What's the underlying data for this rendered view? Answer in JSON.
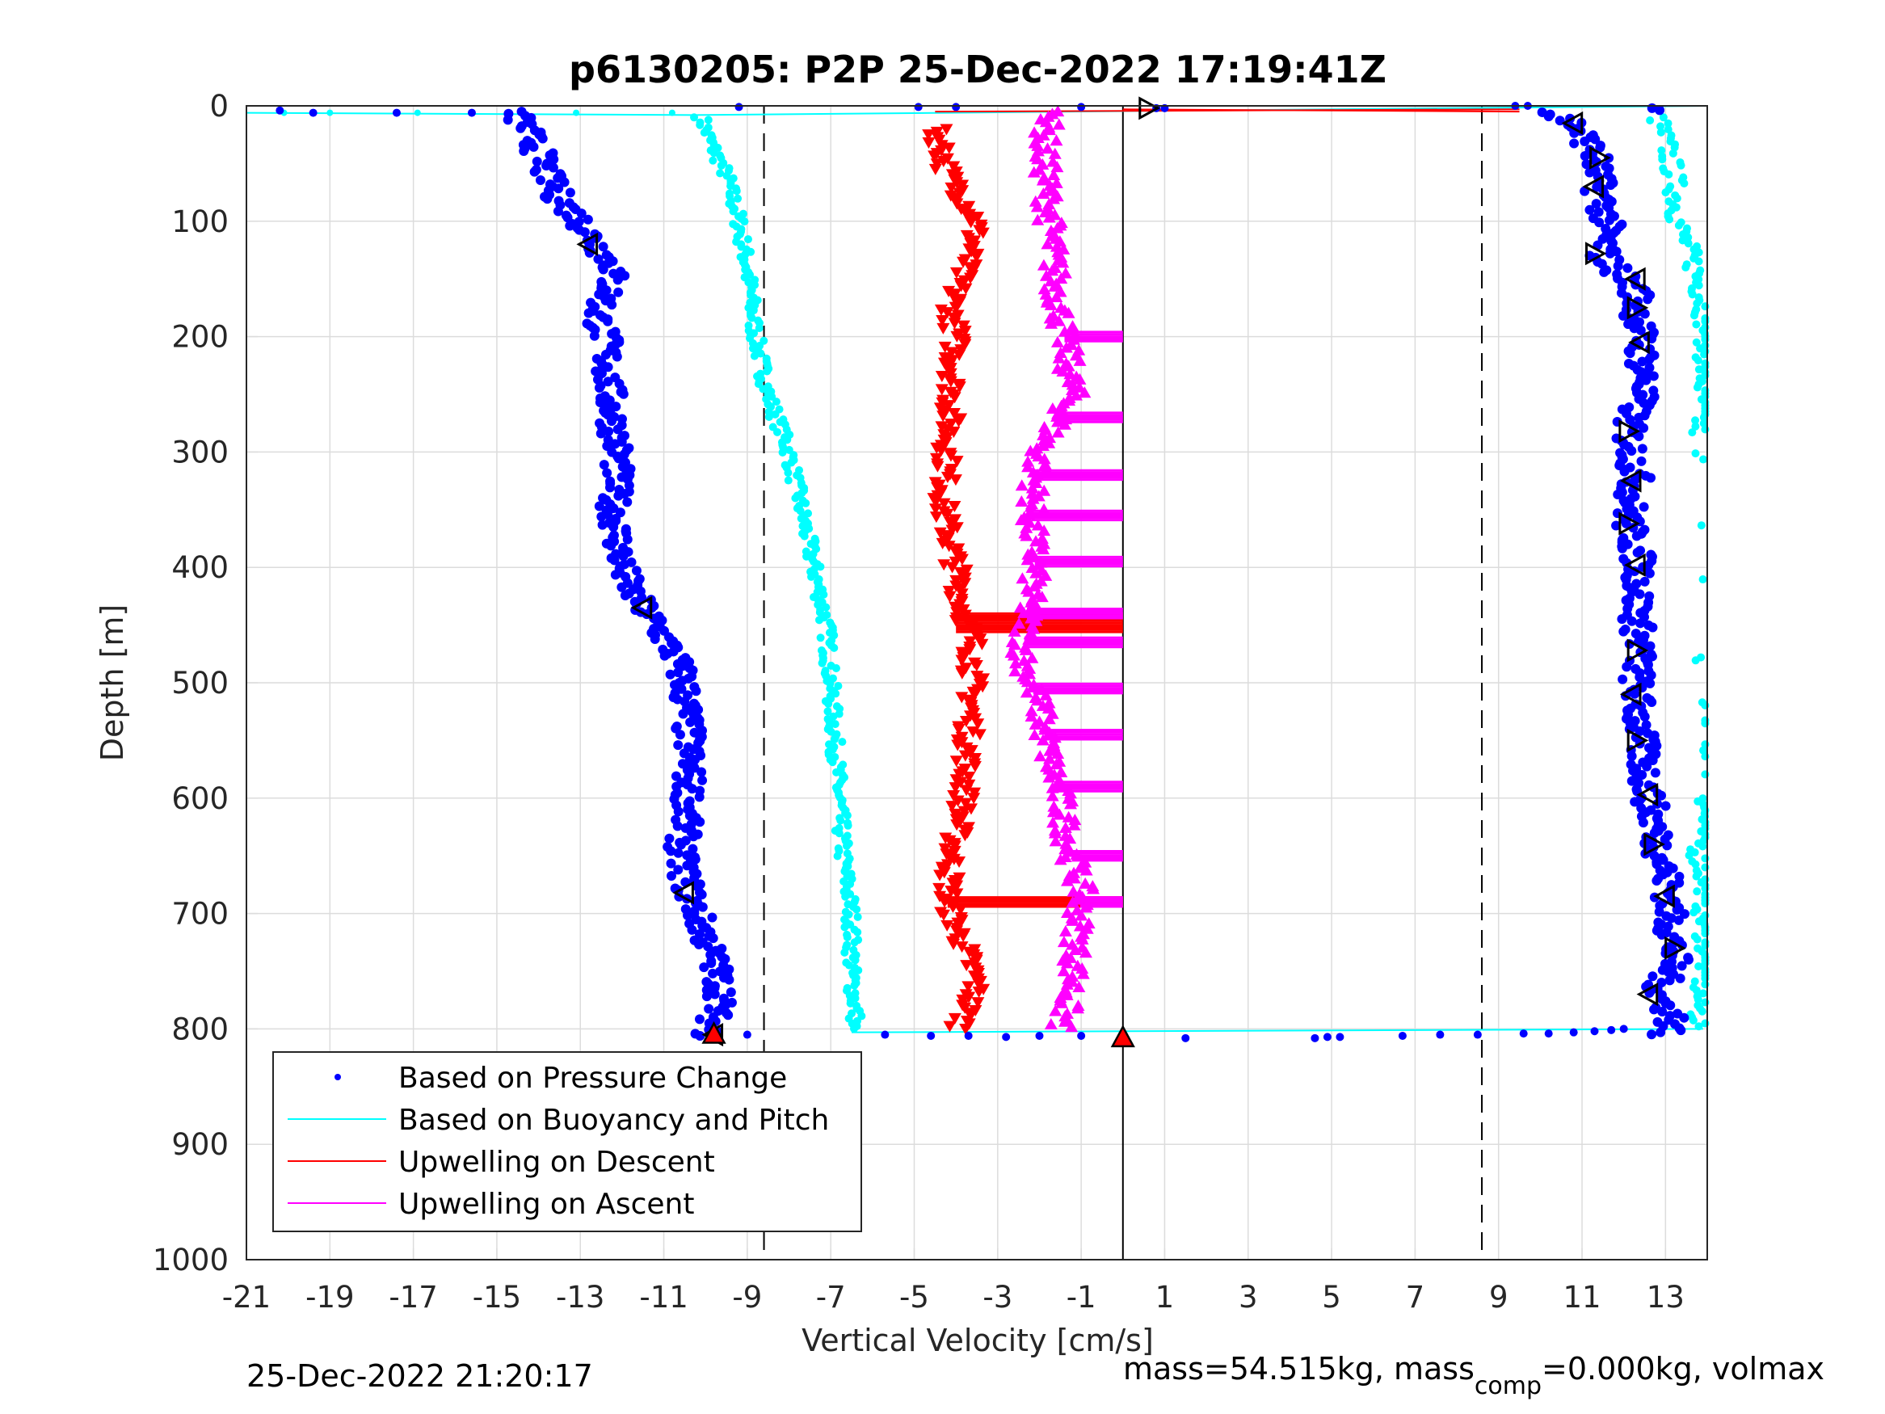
{
  "chart_data": {
    "type": "scatter",
    "title": "p6130205: P2P 25-Dec-2022 17:19:41Z",
    "xlabel": "Vertical Velocity [cm/s]",
    "ylabel": "Depth [m]",
    "xlim": [
      -21,
      14
    ],
    "ylim": [
      0,
      1000
    ],
    "y_reversed": true,
    "grid": true,
    "legend_position": "bottom-left",
    "x_ticks": [
      "-21",
      "-19",
      "-17",
      "-15",
      "-13",
      "-11",
      "-9",
      "-7",
      "-5",
      "-3",
      "-1",
      "1",
      "3",
      "5",
      "7",
      "9",
      "11",
      "13"
    ],
    "y_ticks": [
      "0",
      "100",
      "200",
      "300",
      "400",
      "500",
      "600",
      "700",
      "800",
      "900",
      "1000"
    ],
    "reference_lines": {
      "solid_x": [
        0
      ],
      "dashed_x": [
        -8.6,
        8.6
      ]
    },
    "series": [
      {
        "name": "Based on Pressure Change",
        "color": "#0000ff",
        "marker": "dot",
        "descent": {
          "depth": [
            5,
            20,
            40,
            60,
            80,
            100,
            120,
            140,
            160,
            180,
            200,
            250,
            300,
            350,
            400,
            420,
            440,
            460,
            480,
            500,
            550,
            600,
            650,
            680,
            700,
            740,
            770,
            790,
            800,
            805
          ],
          "velocity": [
            -14.6,
            -14.3,
            -14,
            -13.8,
            -13.5,
            -13,
            -12.6,
            -12.2,
            -12.3,
            -12.6,
            -12.4,
            -12.3,
            -12.1,
            -12.2,
            -12.0,
            -11.8,
            -11.4,
            -11.0,
            -10.7,
            -10.5,
            -10.4,
            -10.4,
            -10.6,
            -10.4,
            -10.2,
            -9.8,
            -9.6,
            -9.8,
            -9.9,
            -9.9
          ]
        },
        "ascent": {
          "depth": [
            805,
            800,
            790,
            770,
            740,
            700,
            680,
            650,
            600,
            550,
            500,
            470,
            440,
            400,
            360,
            320,
            280,
            240,
            200,
            160,
            130,
            100,
            70,
            40,
            15,
            5
          ],
          "velocity": [
            13.0,
            13.1,
            13.2,
            12.8,
            13.2,
            13.1,
            13.1,
            12.9,
            12.6,
            12.4,
            12.3,
            12.4,
            12.3,
            12.4,
            12.1,
            12.3,
            12.1,
            12.5,
            12.4,
            12.3,
            11.5,
            11.6,
            11.4,
            11.3,
            10.8,
            10.1
          ]
        }
      },
      {
        "name": "Based on Buoyancy and Pitch",
        "color": "#00ffff",
        "marker": "line+dot",
        "descent": {
          "depth": [
            8,
            10,
            30,
            60,
            100,
            140,
            200,
            250,
            300,
            350,
            400,
            450,
            500,
            550,
            600,
            650,
            700,
            750,
            790,
            800
          ],
          "velocity": [
            -10.3,
            -10.1,
            -9.9,
            -9.5,
            -9.2,
            -9.0,
            -8.8,
            -8.5,
            -8.0,
            -7.7,
            -7.4,
            -7.1,
            -7.0,
            -6.9,
            -6.8,
            -6.7,
            -6.5,
            -6.5,
            -6.4,
            -6.5
          ]
        },
        "ascent": {
          "depth": [
            800,
            790,
            770,
            740,
            700,
            680,
            650,
            620,
            600,
            550,
            400,
            350,
            320,
            280,
            240,
            200,
            170,
            140,
            100,
            60,
            30,
            10
          ],
          "velocity": [
            13.9,
            13.8,
            13.8,
            14.0,
            13.9,
            14.0,
            13.8,
            13.9,
            14.0,
            14.0,
            13.9,
            13.8,
            13.9,
            13.8,
            13.9,
            14.0,
            13.9,
            13.7,
            13.3,
            13.2,
            13.0,
            12.8
          ]
        }
      },
      {
        "name": "Upwelling on Descent",
        "color": "#ff0000",
        "marker": "triangle-down",
        "depth": [
          20,
          40,
          60,
          80,
          100,
          120,
          140,
          160,
          180,
          200,
          250,
          300,
          350,
          400,
          440,
          460,
          500,
          550,
          600,
          650,
          690,
          720,
          760,
          790,
          800
        ],
        "velocity": [
          -4.5,
          -4.3,
          -4.2,
          -3.8,
          -3.5,
          -3.6,
          -3.8,
          -4.0,
          -4.1,
          -4.0,
          -4.1,
          -4.2,
          -4.3,
          -4.0,
          -3.8,
          -3.6,
          -3.6,
          -3.7,
          -3.8,
          -4.1,
          -4.2,
          -3.9,
          -3.5,
          -3.8,
          -3.9
        ]
      },
      {
        "name": "Upwelling on Ascent",
        "color": "#ff00ff",
        "marker": "triangle-up",
        "depth": [
          10,
          40,
          80,
          120,
          160,
          200,
          250,
          300,
          320,
          360,
          400,
          440,
          480,
          520,
          560,
          600,
          640,
          680,
          720,
          760,
          800
        ],
        "velocity": [
          -1.8,
          -1.9,
          -1.8,
          -1.7,
          -1.6,
          -1.4,
          -1.2,
          -2.0,
          -2.1,
          -2.2,
          -2.1,
          -2.3,
          -2.4,
          -2.0,
          -1.8,
          -1.5,
          -1.3,
          -1.0,
          -1.1,
          -1.2,
          -1.5
        ]
      }
    ],
    "markers_annotations": {
      "open_triangles_descent": [
        [
          -12.8,
          120
        ],
        [
          -11.5,
          435
        ],
        [
          -10.5,
          682
        ],
        [
          -9.8,
          805
        ]
      ],
      "open_triangles_ascent": [
        [
          10.8,
          15
        ],
        [
          11.4,
          45
        ],
        [
          11.3,
          70
        ],
        [
          11.3,
          128
        ],
        [
          12.3,
          150
        ],
        [
          12.3,
          175
        ],
        [
          12.4,
          205
        ],
        [
          12.1,
          282
        ],
        [
          12.2,
          325
        ],
        [
          12.1,
          362
        ],
        [
          12.3,
          398
        ],
        [
          12.3,
          472
        ],
        [
          12.2,
          510
        ],
        [
          12.3,
          550
        ],
        [
          12.6,
          597
        ],
        [
          12.7,
          640
        ],
        [
          13.0,
          685
        ],
        [
          13.2,
          730
        ],
        [
          12.6,
          770
        ],
        [
          0.6,
          2
        ]
      ],
      "filled_red_triangles": [
        [
          -9.8,
          805
        ],
        [
          0,
          808
        ]
      ]
    },
    "footer_left": "25-Dec-2022 21:20:17",
    "footer_right": "mass=54.515kg, mass",
    "footer_right_sub": "comp",
    "footer_right_tail": "=0.000kg, volmax"
  }
}
